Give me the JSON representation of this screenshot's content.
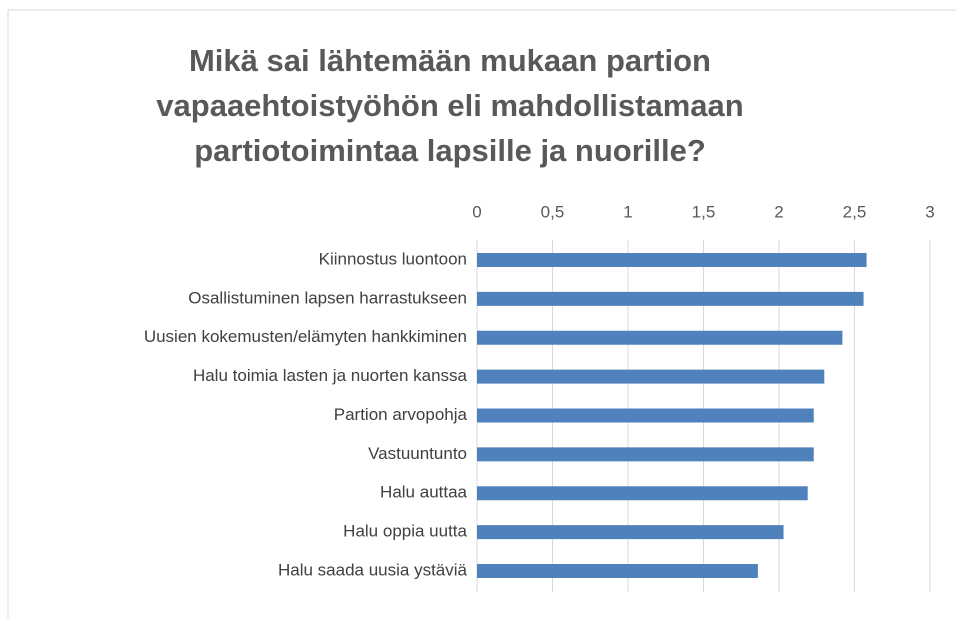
{
  "chart_data": {
    "type": "barh",
    "title": [
      "Mikä sai lähtemään mukaan partion",
      "vapaaehtoistyöhön eli mahdollistamaan",
      "partiotoimintaa lapsille ja nuorille?"
    ],
    "categories": [
      "Kiinnostus luontoon",
      "Osallistuminen lapsen harrastukseen",
      "Uusien kokemusten/elämyten hankkiminen",
      "Halu toimia lasten ja nuorten kanssa",
      "Partion arvopohja",
      "Vastuuntunto",
      "Halu auttaa",
      "Halu oppia uutta",
      "Halu saada uusia ystäviä"
    ],
    "values": [
      2.58,
      2.56,
      2.42,
      2.3,
      2.23,
      2.23,
      2.19,
      2.03,
      1.86
    ],
    "color": "#4f81bd",
    "xlim": [
      0,
      3
    ],
    "xticks": [
      0,
      {
        "value": 0.5,
        "label": "0,5"
      },
      1,
      {
        "value": 1.5,
        "label": "1,5"
      },
      2,
      {
        "value": 2.5,
        "label": "2,5"
      },
      3
    ],
    "grid": true
  }
}
